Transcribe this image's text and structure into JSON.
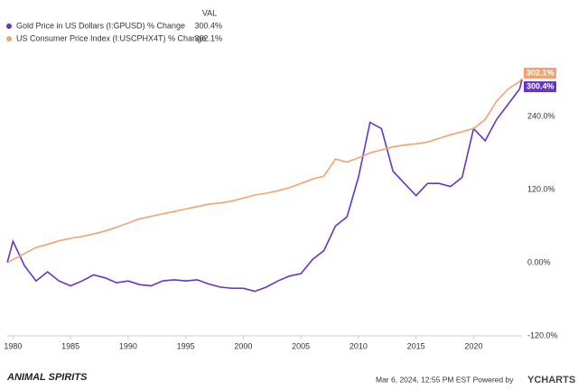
{
  "chart_data": {
    "type": "line",
    "legend_header": "VAL",
    "footer": "Mar 6, 2024, 12:55 PM EST Powered by",
    "brand": "YCHARTS",
    "watermark": "ANIMAL SPIRITS",
    "x": [
      1979.5,
      1980,
      1981,
      1982,
      1983,
      1984,
      1985,
      1986,
      1987,
      1988,
      1989,
      1990,
      1991,
      1992,
      1993,
      1994,
      1995,
      1996,
      1997,
      1998,
      1999,
      2000,
      2001,
      2002,
      2003,
      2004,
      2005,
      2006,
      2007,
      2008,
      2009,
      2010,
      2011,
      2012,
      2013,
      2014,
      2015,
      2016,
      2017,
      2018,
      2019,
      2020,
      2021,
      2022,
      2023,
      2024,
      2024.2
    ],
    "xlim": [
      1979.5,
      2024.2
    ],
    "xticks": [
      1980,
      1985,
      1990,
      1995,
      2000,
      2005,
      2010,
      2015,
      2020
    ],
    "ylim": [
      -120,
      305
    ],
    "yticks": [
      {
        "value": 240,
        "label": "240.0%"
      },
      {
        "value": 120,
        "label": "120.0%"
      },
      {
        "value": 0,
        "label": "0.00%"
      },
      {
        "value": -120,
        "label": "-120.0%"
      }
    ],
    "grid": false,
    "series": [
      {
        "name": "Gold Price in US Dollars (I:GPUSD) % Change",
        "color": "#6535c2",
        "values": [
          0,
          35,
          -5,
          -30,
          -15,
          -30,
          -38,
          -30,
          -20,
          -25,
          -33,
          -30,
          -36,
          -38,
          -30,
          -28,
          -30,
          -28,
          -35,
          -40,
          -42,
          -42,
          -47,
          -40,
          -30,
          -22,
          -18,
          5,
          20,
          60,
          75,
          140,
          230,
          220,
          150,
          130,
          110,
          130,
          130,
          125,
          140,
          220,
          200,
          235,
          260,
          285,
          300.4
        ],
        "value_labels": [
          null,
          null,
          null,
          null,
          null,
          null,
          null,
          null,
          null,
          null,
          null,
          null,
          null,
          null,
          null,
          null,
          null,
          null,
          null,
          null,
          null,
          null,
          null,
          null,
          null,
          null,
          null,
          null,
          null,
          null,
          null,
          null,
          null,
          null,
          null,
          null,
          null,
          null,
          null,
          null,
          null,
          null,
          null,
          null,
          null,
          null,
          "300.4%"
        ]
      },
      {
        "name": "US Consumer Price Index (I:USCPHX4T) % Change",
        "color": "#f4a272",
        "values": [
          0,
          5,
          15,
          25,
          30,
          36,
          40,
          43,
          47,
          52,
          58,
          65,
          72,
          76,
          80,
          84,
          88,
          92,
          96,
          98,
          101,
          106,
          111,
          114,
          118,
          123,
          130,
          137,
          142,
          170,
          165,
          172,
          180,
          185,
          190,
          193,
          195,
          198,
          204,
          210,
          215,
          220,
          235,
          265,
          285,
          297,
          302.1
        ],
        "value_labels": [
          null,
          null,
          null,
          null,
          null,
          null,
          null,
          null,
          null,
          null,
          null,
          null,
          null,
          null,
          null,
          null,
          null,
          null,
          null,
          null,
          null,
          null,
          null,
          null,
          null,
          null,
          null,
          null,
          null,
          null,
          null,
          null,
          null,
          null,
          null,
          null,
          null,
          null,
          null,
          null,
          null,
          null,
          null,
          null,
          null,
          null,
          "302.1%"
        ]
      }
    ]
  }
}
